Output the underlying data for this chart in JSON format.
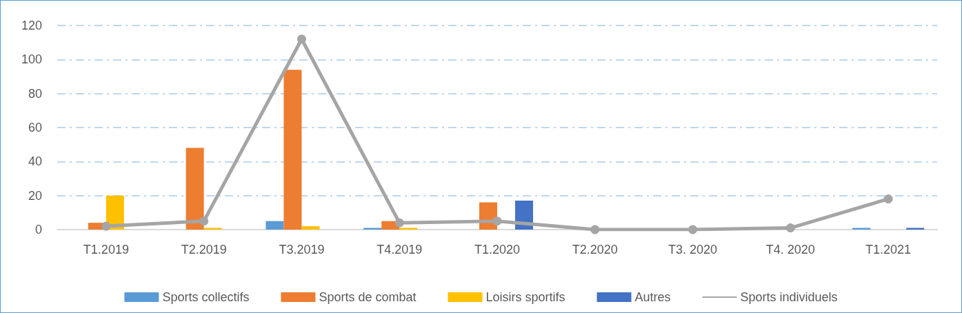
{
  "chart_data": {
    "type": "bar",
    "categories": [
      "T1.2019",
      "T2.2019",
      "T3.2019",
      "T4.2019",
      "T1.2020",
      "T2.2020",
      "T3. 2020",
      "T4. 2020",
      "T1.2021"
    ],
    "series": [
      {
        "name": "Sports collectifs",
        "color": "#5b9bd5",
        "values": [
          0,
          0,
          5,
          1,
          0,
          0,
          0,
          0,
          1
        ]
      },
      {
        "name": "Sports de combat",
        "color": "#ed7d31",
        "values": [
          4,
          48,
          94,
          5,
          16,
          0,
          0,
          0,
          0
        ]
      },
      {
        "name": "Loisirs sportifs",
        "color": "#ffc000",
        "values": [
          20,
          1,
          2,
          1,
          0,
          0,
          0,
          0,
          0
        ]
      },
      {
        "name": "Autres",
        "color": "#4472c4",
        "values": [
          0,
          0,
          0,
          0,
          17,
          0,
          0,
          0,
          1
        ]
      },
      {
        "name": "Sports individuels",
        "type": "line",
        "color": "#a5a5a5",
        "values": [
          2,
          5,
          112,
          4,
          5,
          0,
          0,
          1,
          18
        ]
      }
    ],
    "ylim": [
      0,
      120
    ],
    "yticks": [
      0,
      20,
      40,
      60,
      80,
      100,
      120
    ],
    "grid": "y",
    "legend": "bottom",
    "marker": "circle",
    "line_style": "solid"
  }
}
